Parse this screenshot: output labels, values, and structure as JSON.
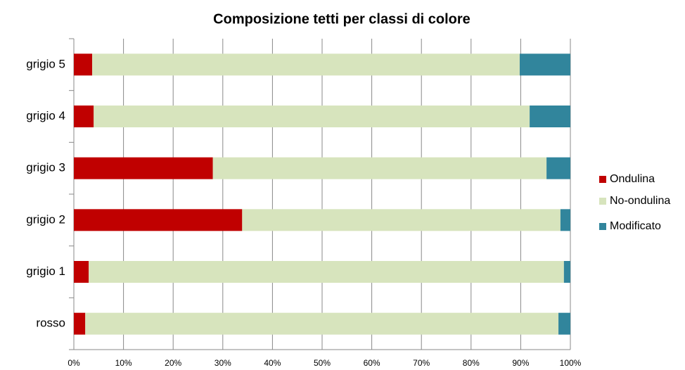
{
  "chart_data": {
    "type": "stacked-bar-horizontal",
    "title": "Composizione tetti per classi di colore",
    "categories": [
      "rosso",
      "grigio 1",
      "grigio 2",
      "grigio 3",
      "grigio 4",
      "grigio 5"
    ],
    "series": [
      {
        "name": "Ondulina",
        "color": "#c00000",
        "values": [
          2.3,
          3.0,
          33.9,
          28.0,
          4.0,
          3.7
        ]
      },
      {
        "name": "No-ondulina",
        "color": "#d7e4bd",
        "values": [
          95.3,
          95.7,
          64.1,
          67.2,
          87.8,
          86.1
        ]
      },
      {
        "name": "Modificato",
        "color": "#31859c",
        "values": [
          2.4,
          1.3,
          2.0,
          4.8,
          8.2,
          10.2
        ]
      }
    ],
    "xlim": [
      0,
      100
    ],
    "xticks": [
      {
        "value": 0,
        "label": "0%"
      },
      {
        "value": 10,
        "label": "10%"
      },
      {
        "value": 20,
        "label": "20%"
      },
      {
        "value": 30,
        "label": "30%"
      },
      {
        "value": 40,
        "label": "40%"
      },
      {
        "value": 50,
        "label": "50%"
      },
      {
        "value": 60,
        "label": "60%"
      },
      {
        "value": 70,
        "label": "70%"
      },
      {
        "value": 80,
        "label": "80%"
      },
      {
        "value": 90,
        "label": "90%"
      },
      {
        "value": 100,
        "label": "100%"
      }
    ],
    "grid": true,
    "legend": "right"
  }
}
